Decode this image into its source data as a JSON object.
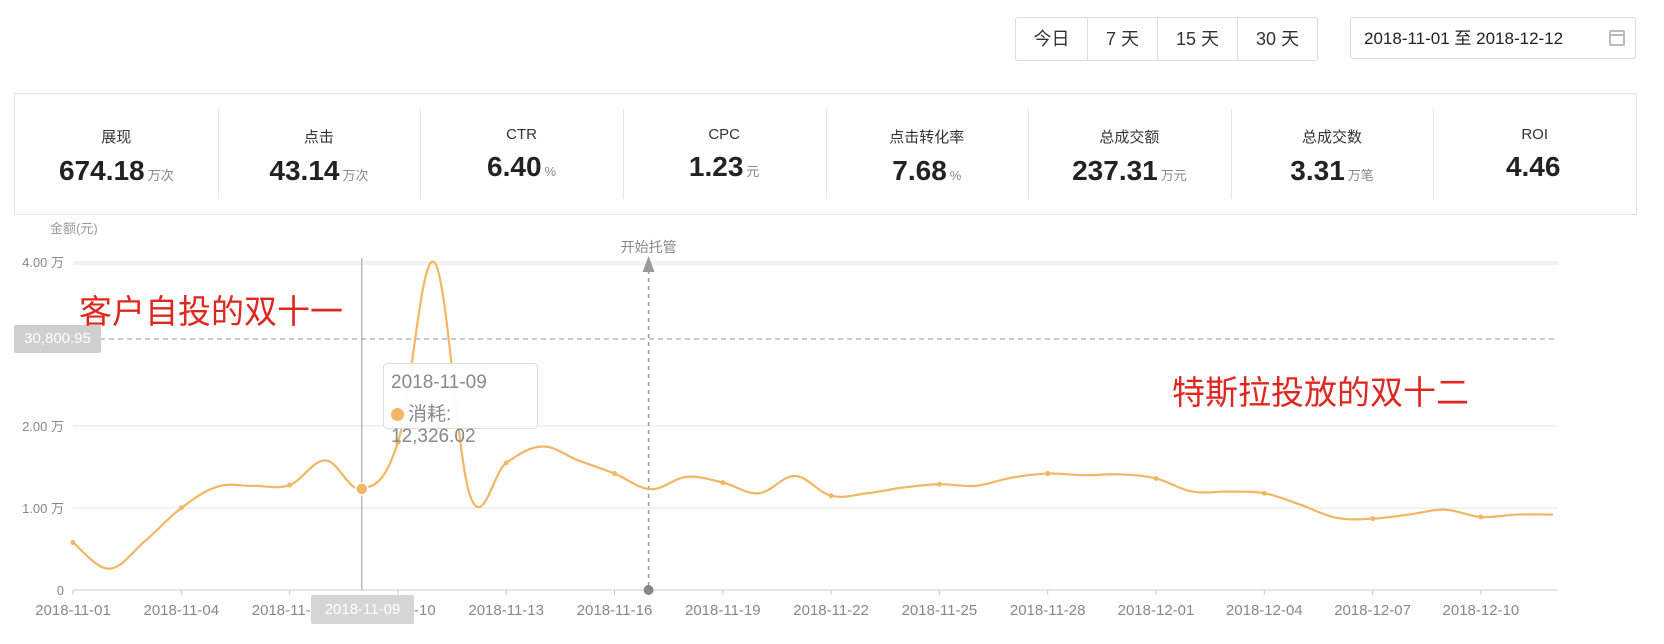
{
  "toolbar": {
    "ranges": [
      "今日",
      "7 天",
      "15 天",
      "30 天"
    ],
    "date_range": "2018-11-01 至 2018-12-12"
  },
  "stats": [
    {
      "label": "展现",
      "value": "674.18",
      "unit": "万次"
    },
    {
      "label": "点击",
      "value": "43.14",
      "unit": "万次"
    },
    {
      "label": "CTR",
      "value": "6.40",
      "unit": "%"
    },
    {
      "label": "CPC",
      "value": "1.23",
      "unit": "元"
    },
    {
      "label": "点击转化率",
      "value": "7.68",
      "unit": "%"
    },
    {
      "label": "总成交额",
      "value": "237.31",
      "unit": "万元"
    },
    {
      "label": "总成交数",
      "value": "3.31",
      "unit": "万笔"
    },
    {
      "label": "ROI",
      "value": "4.46",
      "unit": ""
    }
  ],
  "chart_data": {
    "type": "line",
    "ylabel": "金额(元)",
    "yticks": [
      "0",
      "1.00 万",
      "2.00 万",
      "4.00 万"
    ],
    "ylim": [
      0,
      40000
    ],
    "x_tick_labels": [
      "2018-11-01",
      "2018-11-04",
      "2018-11-07",
      "2018-11-10",
      "2018-11-13",
      "2018-11-16",
      "2018-11-19",
      "2018-11-22",
      "2018-11-25",
      "2018-11-28",
      "2018-12-01",
      "2018-12-04",
      "2018-12-07",
      "2018-12-10"
    ],
    "series": [
      {
        "name": "消耗",
        "color": "#f2b664",
        "x": [
          "2018-11-01",
          "2018-11-02",
          "2018-11-03",
          "2018-11-04",
          "2018-11-05",
          "2018-11-06",
          "2018-11-07",
          "2018-11-08",
          "2018-11-09",
          "2018-11-10",
          "2018-11-11",
          "2018-11-12",
          "2018-11-13",
          "2018-11-14",
          "2018-11-15",
          "2018-11-16",
          "2018-11-17",
          "2018-11-18",
          "2018-11-19",
          "2018-11-20",
          "2018-11-21",
          "2018-11-22",
          "2018-11-23",
          "2018-11-24",
          "2018-11-25",
          "2018-11-26",
          "2018-11-27",
          "2018-11-28",
          "2018-11-29",
          "2018-11-30",
          "2018-12-01",
          "2018-12-02",
          "2018-12-03",
          "2018-12-04",
          "2018-12-05",
          "2018-12-06",
          "2018-12-07",
          "2018-12-08",
          "2018-12-09",
          "2018-12-10",
          "2018-12-11",
          "2018-12-12"
        ],
        "values": [
          5800,
          2600,
          6000,
          10000,
          12600,
          12700,
          12800,
          15800,
          12326.02,
          18000,
          40000,
          11500,
          15500,
          17500,
          15800,
          14200,
          12300,
          13800,
          13100,
          11800,
          13900,
          11500,
          11800,
          12500,
          12900,
          12700,
          13700,
          14200,
          14000,
          14100,
          13600,
          12000,
          12000,
          11800,
          10400,
          8800,
          8700,
          9200,
          9800,
          8900,
          9200,
          9200
        ]
      }
    ],
    "highlight": {
      "date": "2018-11-09",
      "label": "消耗",
      "value": "12,326.02"
    },
    "mark_line": {
      "value_label": "30,800.95"
    },
    "mark_event": {
      "date": "2018-11-17",
      "label": "开始托管"
    },
    "annotations": [
      "客户自投的双十一",
      "特斯拉投放的双十二"
    ]
  }
}
